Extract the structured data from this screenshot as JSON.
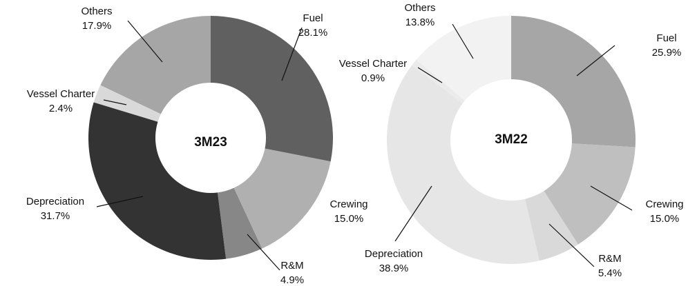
{
  "chart_data": [
    {
      "type": "pie",
      "title": "3M23",
      "categories": [
        "Fuel",
        "Crewing",
        "R&M",
        "Depreciation",
        "Vessel Charter",
        "Others"
      ],
      "values": [
        28.1,
        15.0,
        4.9,
        31.7,
        2.4,
        17.9
      ],
      "value_labels": [
        "28.1%",
        "15.0%",
        "4.9%",
        "31.7%",
        "2.4%",
        "17.9%"
      ],
      "colors": [
        "#606060",
        "#b0b0b0",
        "#878787",
        "#333333",
        "#d9d9d9",
        "#a6a6a6"
      ]
    },
    {
      "type": "pie",
      "title": "3M22",
      "categories": [
        "Fuel",
        "Crewing",
        "R&M",
        "Depreciation",
        "Vessel Charter",
        "Others"
      ],
      "values": [
        25.9,
        15.0,
        5.4,
        38.9,
        0.9,
        13.8
      ],
      "value_labels": [
        "25.9%",
        "15.0%",
        "5.4%",
        "38.9%",
        "0.9%",
        "13.8%"
      ],
      "colors": [
        "#a6a6a6",
        "#bfbfbf",
        "#d9d9d9",
        "#e6e6e6",
        "#ebebeb",
        "#f2f2f2"
      ]
    }
  ]
}
